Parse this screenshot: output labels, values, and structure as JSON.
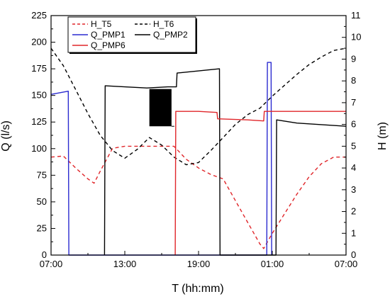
{
  "chart_data": {
    "type": "line",
    "xlabel": "T (hh:mm)",
    "ylabel_left": "Q (l/s)",
    "ylabel_right": "H (m)",
    "x_unit": "hours since 07:00",
    "xlim": [
      0,
      24
    ],
    "x_ticks": [
      {
        "value": 0,
        "label": "07:00"
      },
      {
        "value": 6,
        "label": "13:00"
      },
      {
        "value": 12,
        "label": "19:00"
      },
      {
        "value": 18,
        "label": "01:00"
      },
      {
        "value": 24,
        "label": "07:00"
      }
    ],
    "ylim_left": [
      0,
      225
    ],
    "y_ticks_left": [
      0,
      25,
      50,
      75,
      100,
      125,
      150,
      175,
      200,
      225
    ],
    "ylim_right": [
      0,
      11
    ],
    "y_ticks_right": [
      0,
      1,
      2,
      3,
      4,
      5,
      6,
      7,
      8,
      9,
      10,
      11
    ],
    "legend": {
      "placement": "top-left"
    },
    "series": [
      {
        "name": "H_T5",
        "axis": "right",
        "color": "#e0262a",
        "dash": "dashed",
        "points": [
          [
            0,
            4.5
          ],
          [
            1,
            4.55
          ],
          [
            2,
            4.0
          ],
          [
            3,
            3.5
          ],
          [
            3.5,
            3.3
          ],
          [
            4,
            3.85
          ],
          [
            5,
            4.9
          ],
          [
            6,
            5.0
          ],
          [
            7,
            5.0
          ],
          [
            8,
            5.0
          ],
          [
            10,
            5.0
          ],
          [
            11,
            4.4
          ],
          [
            12,
            4.0
          ],
          [
            13,
            3.7
          ],
          [
            14,
            3.5
          ],
          [
            15,
            2.5
          ],
          [
            16,
            1.5
          ],
          [
            17,
            0.5
          ],
          [
            17.3,
            0.3
          ],
          [
            18,
            1.0
          ],
          [
            19,
            1.9
          ],
          [
            20,
            2.8
          ],
          [
            21,
            3.6
          ],
          [
            22,
            4.2
          ],
          [
            23,
            4.5
          ],
          [
            24,
            4.5
          ]
        ]
      },
      {
        "name": "H_T6",
        "axis": "right",
        "color": "#000000",
        "dash": "dashed",
        "points": [
          [
            0,
            9.5
          ],
          [
            1,
            8.7
          ],
          [
            2,
            7.6
          ],
          [
            3,
            6.5
          ],
          [
            4,
            5.5
          ],
          [
            5,
            4.8
          ],
          [
            6,
            4.45
          ],
          [
            7,
            4.85
          ],
          [
            8,
            5.4
          ],
          [
            9,
            5.05
          ],
          [
            10,
            4.5
          ],
          [
            11,
            4.15
          ],
          [
            12,
            4.25
          ],
          [
            13,
            4.8
          ],
          [
            14,
            5.4
          ],
          [
            15,
            6.0
          ],
          [
            16,
            6.45
          ],
          [
            17,
            6.75
          ],
          [
            18,
            7.3
          ],
          [
            19,
            7.8
          ],
          [
            20,
            8.3
          ],
          [
            21,
            8.75
          ],
          [
            22,
            9.1
          ],
          [
            23,
            9.4
          ],
          [
            24,
            9.5
          ]
        ]
      },
      {
        "name": "Q_PMP1",
        "axis": "left",
        "color": "#2b2bd0",
        "dash": "solid",
        "points": [
          [
            0,
            151
          ],
          [
            1.4,
            154
          ],
          [
            1.45,
            0
          ],
          [
            17.55,
            0
          ],
          [
            17.6,
            181
          ],
          [
            17.9,
            181
          ],
          [
            17.95,
            0
          ]
        ]
      },
      {
        "name": "Q_PMP2",
        "axis": "left",
        "color": "#000000",
        "dash": "solid",
        "points": [
          [
            4.35,
            0
          ],
          [
            4.4,
            159
          ],
          [
            6,
            158
          ],
          [
            7.8,
            157
          ],
          [
            9.5,
            158
          ],
          [
            10.2,
            158
          ],
          [
            10.25,
            171
          ],
          [
            13.7,
            175
          ],
          [
            13.75,
            0
          ],
          [
            18.3,
            0
          ],
          [
            18.35,
            127
          ],
          [
            20,
            124
          ],
          [
            24,
            121
          ]
        ]
      },
      {
        "name": "Q_PMP6",
        "axis": "left",
        "color": "#e0262a",
        "dash": "solid",
        "points": [
          [
            10.1,
            0
          ],
          [
            10.15,
            135
          ],
          [
            12,
            135
          ],
          [
            13.5,
            134
          ],
          [
            13.55,
            128
          ],
          [
            16,
            127
          ],
          [
            17.3,
            126
          ],
          [
            17.35,
            135
          ],
          [
            24,
            135
          ]
        ]
      }
    ],
    "annotations": [
      {
        "type": "oscillation-band",
        "series": "Q_PMP2",
        "x": [
          8.0,
          9.8
        ],
        "y": [
          121,
          156
        ]
      }
    ]
  }
}
